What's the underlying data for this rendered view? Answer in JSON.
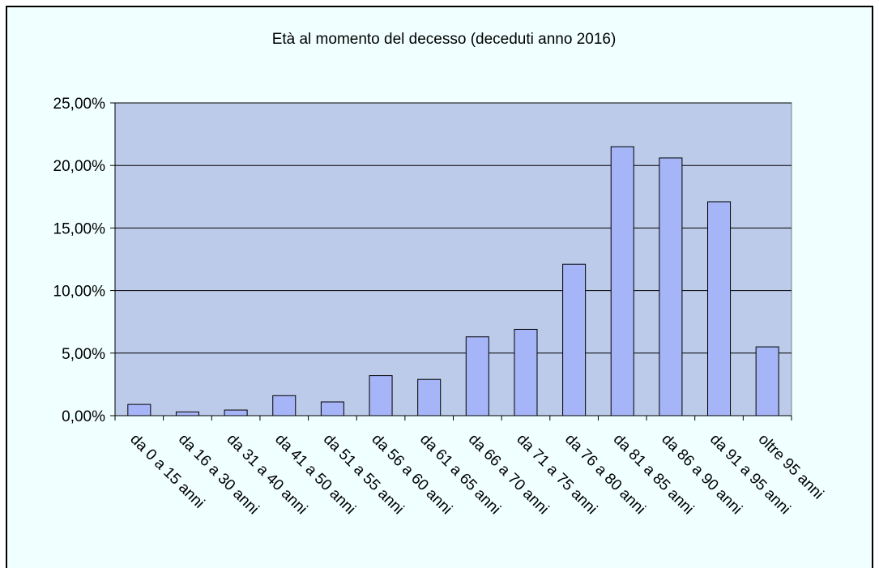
{
  "chart_data": {
    "type": "bar",
    "title": "Età al momento del decesso (deceduti anno 2016)",
    "categories": [
      "da 0 a 15 anni",
      "da 16 a 30 anni",
      "da 31 a 40 anni",
      "da 41 a 50 anni",
      "da 51 a 55 anni",
      "da 56 a 60 anni",
      "da 61 a 65 anni",
      "da 66 a 70 anni",
      "da 71 a 75 anni",
      "da 76 a 80 anni",
      "da 81 a 85 anni",
      "da 86 a 90 anni",
      "da 91 a 95 anni",
      "oltre 95 anni"
    ],
    "values": [
      0.9,
      0.3,
      0.45,
      1.6,
      1.1,
      3.2,
      2.9,
      6.3,
      6.9,
      12.1,
      21.5,
      20.6,
      17.1,
      5.5
    ],
    "color": "#a6b4f8",
    "ylim": [
      0,
      25
    ],
    "yticks": [
      {
        "value": 0,
        "label": "0,00%"
      },
      {
        "value": 5,
        "label": "5,00%"
      },
      {
        "value": 10,
        "label": "10,00%"
      },
      {
        "value": 15,
        "label": "15,00%"
      },
      {
        "value": 20,
        "label": "20,00%"
      },
      {
        "value": 25,
        "label": "25,00%"
      }
    ],
    "grid": true
  }
}
